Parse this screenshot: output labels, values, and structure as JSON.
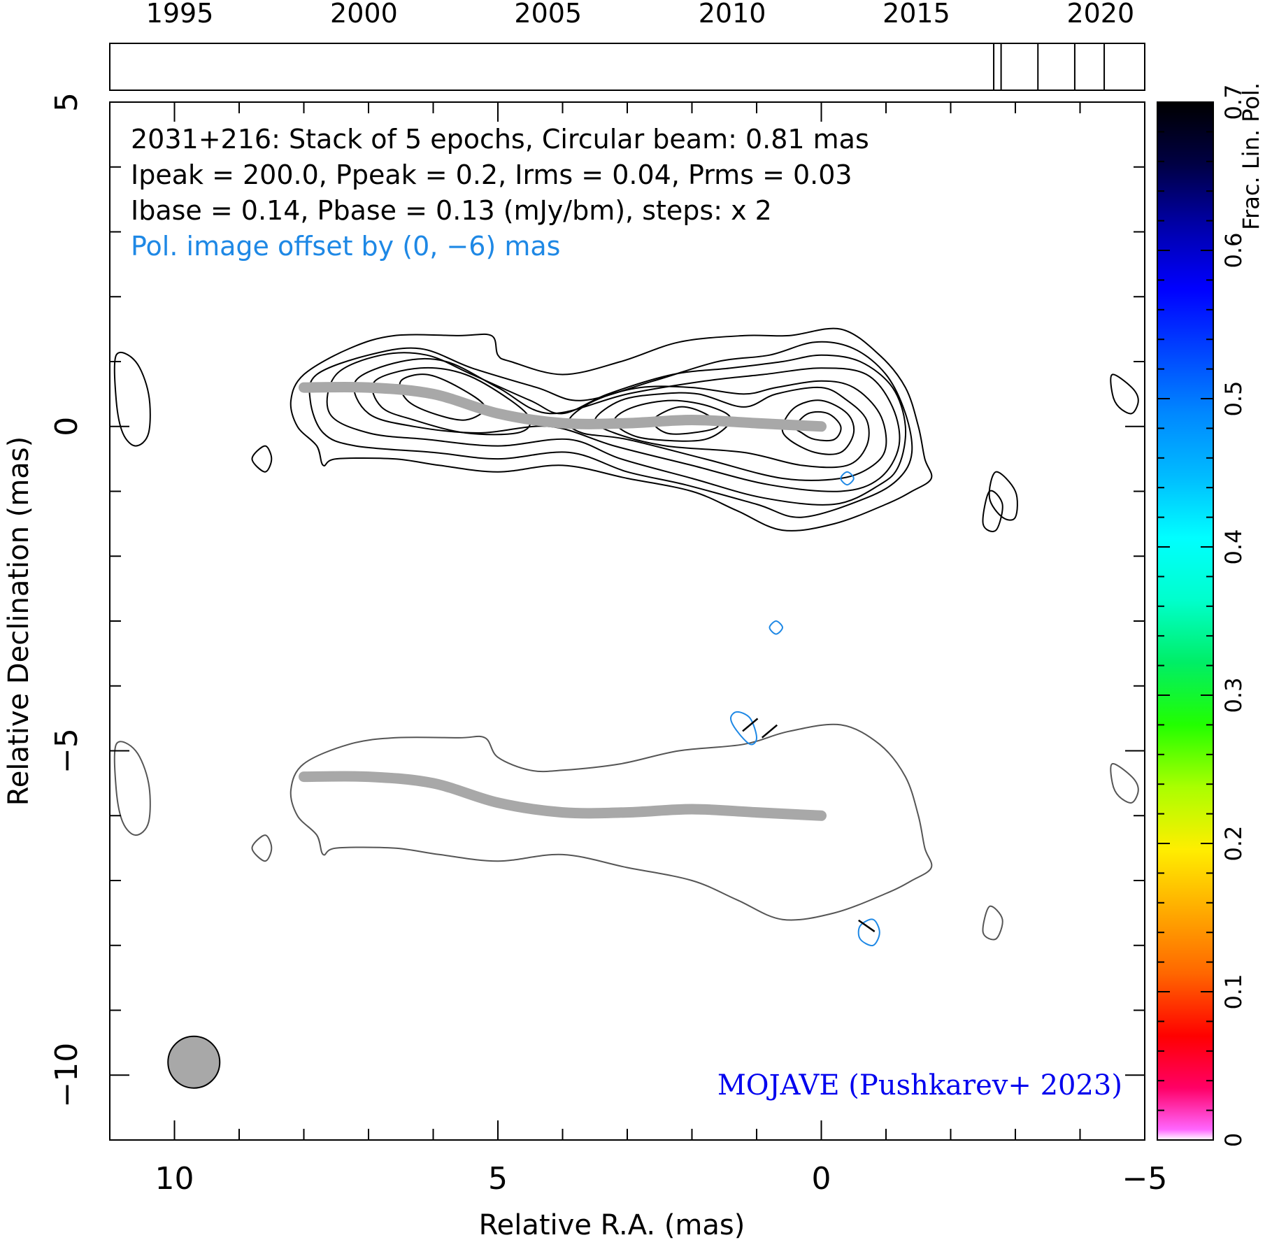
{
  "chart_data": {
    "type": "contour",
    "source_name": "2031+216",
    "annotation_lines": [
      "2031+216: Stack of 5 epochs, Circular beam: 0.81 mas",
      "Ipeak = 200.0, Ppeak = 0.2, Irms = 0.04, Prms = 0.03",
      "Ibase = 0.14, Pbase = 0.13 (mJy/bm), steps: x 2"
    ],
    "offset_note": "Pol. image offset by (0, −6) mas",
    "credit": "MOJAVE (Pushkarev+ 2023)",
    "xlabel": "Relative R.A. (mas)",
    "ylabel": "Relative Declination (mas)",
    "xlim": [
      11,
      -5
    ],
    "ylim": [
      -11,
      5
    ],
    "x_ticks": [
      {
        "value": 10,
        "label": "10"
      },
      {
        "value": 5,
        "label": "5"
      },
      {
        "value": 0,
        "label": "0"
      },
      {
        "value": -5,
        "label": "−5"
      }
    ],
    "y_ticks": [
      {
        "value": 5,
        "label": "5"
      },
      {
        "value": 0,
        "label": "0"
      },
      {
        "value": -5,
        "label": "−5"
      },
      {
        "value": -10,
        "label": "−10"
      }
    ],
    "timeline": {
      "range": [
        1993.1,
        2021.2
      ],
      "ticks": [
        {
          "value": 1995,
          "label": "1995"
        },
        {
          "value": 2000,
          "label": "2000"
        },
        {
          "value": 2005,
          "label": "2005"
        },
        {
          "value": 2010,
          "label": "2010"
        },
        {
          "value": 2015,
          "label": "2015"
        },
        {
          "value": 2020,
          "label": "2020"
        }
      ],
      "epochs": [
        2017.1,
        2017.3,
        2018.3,
        2019.3,
        2020.1
      ]
    },
    "colorbar": {
      "label": "Frac. Lin. Pol.",
      "range": [
        0,
        0.7
      ],
      "ticks": [
        {
          "value": 0,
          "label": "0"
        },
        {
          "value": 0.1,
          "label": "0.1"
        },
        {
          "value": 0.2,
          "label": "0.2"
        },
        {
          "value": 0.3,
          "label": "0.3"
        },
        {
          "value": 0.4,
          "label": "0.4"
        },
        {
          "value": 0.5,
          "label": "0.5"
        },
        {
          "value": 0.6,
          "label": "0.6"
        },
        {
          "value": 0.7,
          "label": "0.7"
        }
      ]
    },
    "beam": {
      "x": 9.7,
      "y": -9.8,
      "diameter_mas": 0.81
    },
    "ridge_line": [
      [
        8.0,
        0.6
      ],
      [
        7.0,
        0.6
      ],
      [
        6.0,
        0.5
      ],
      [
        5.0,
        0.2
      ],
      [
        4.0,
        0.05
      ],
      [
        3.0,
        0.05
      ],
      [
        2.0,
        0.1
      ],
      [
        1.0,
        0.05
      ],
      [
        0.0,
        0.0
      ]
    ],
    "pol_offset": [
      0,
      -6
    ],
    "stokes_i_contours": [
      [
        [
          8.0,
          0.8
        ],
        [
          7.3,
          1.2
        ],
        [
          6.6,
          1.4
        ],
        [
          5.6,
          1.4
        ],
        [
          5.1,
          1.4
        ],
        [
          5.0,
          1.1
        ],
        [
          4.8,
          1.0
        ],
        [
          4.0,
          0.8
        ],
        [
          3.1,
          1.0
        ],
        [
          2.2,
          1.3
        ],
        [
          1.2,
          1.4
        ],
        [
          0.5,
          1.4
        ],
        [
          -0.3,
          1.5
        ],
        [
          -0.9,
          1.1
        ],
        [
          -1.3,
          0.6
        ],
        [
          -1.5,
          0.0
        ],
        [
          -1.6,
          -0.5
        ],
        [
          -1.7,
          -0.8
        ],
        [
          -1.4,
          -1.0
        ],
        [
          -1.0,
          -1.2
        ],
        [
          -0.2,
          -1.5
        ],
        [
          0.6,
          -1.6
        ],
        [
          1.3,
          -1.3
        ],
        [
          2.0,
          -1.0
        ],
        [
          3.0,
          -0.8
        ],
        [
          4.0,
          -0.6
        ],
        [
          5.0,
          -0.7
        ],
        [
          5.9,
          -0.6
        ],
        [
          6.6,
          -0.5
        ],
        [
          7.5,
          -0.5
        ],
        [
          7.7,
          -0.6
        ],
        [
          7.8,
          -0.3
        ],
        [
          8.1,
          0.0
        ],
        [
          8.2,
          0.4
        ]
      ],
      [
        [
          7.8,
          0.8
        ],
        [
          7.0,
          1.1
        ],
        [
          6.2,
          1.2
        ],
        [
          5.4,
          0.9
        ],
        [
          4.4,
          0.6
        ],
        [
          3.7,
          0.4
        ],
        [
          2.6,
          0.7
        ],
        [
          1.6,
          1.0
        ],
        [
          0.8,
          1.1
        ],
        [
          0.1,
          1.3
        ],
        [
          -0.5,
          1.2
        ],
        [
          -1.0,
          0.8
        ],
        [
          -1.3,
          0.2
        ],
        [
          -1.4,
          -0.4
        ],
        [
          -1.2,
          -0.8
        ],
        [
          -0.7,
          -1.1
        ],
        [
          0.3,
          -1.4
        ],
        [
          1.0,
          -1.2
        ],
        [
          2.1,
          -0.9
        ],
        [
          3.0,
          -0.7
        ],
        [
          3.9,
          -0.4
        ],
        [
          5.0,
          -0.5
        ],
        [
          6.0,
          -0.4
        ],
        [
          7.2,
          -0.3
        ],
        [
          7.7,
          -0.1
        ],
        [
          7.9,
          0.4
        ]
      ],
      [
        [
          7.5,
          0.8
        ],
        [
          6.8,
          1.1
        ],
        [
          6.1,
          1.1
        ],
        [
          5.4,
          0.8
        ],
        [
          4.5,
          0.4
        ],
        [
          4.0,
          0.2
        ],
        [
          3.3,
          0.5
        ],
        [
          2.3,
          0.8
        ],
        [
          1.4,
          0.9
        ],
        [
          0.6,
          1.0
        ],
        [
          0.0,
          1.1
        ],
        [
          -0.6,
          1.0
        ],
        [
          -1.1,
          0.6
        ],
        [
          -1.3,
          0.0
        ],
        [
          -1.2,
          -0.6
        ],
        [
          -0.9,
          -0.9
        ],
        [
          -0.2,
          -1.2
        ],
        [
          0.9,
          -1.1
        ],
        [
          2.0,
          -0.8
        ],
        [
          3.1,
          -0.5
        ],
        [
          3.9,
          -0.2
        ],
        [
          5.0,
          -0.3
        ],
        [
          6.1,
          -0.2
        ],
        [
          7.0,
          -0.1
        ],
        [
          7.6,
          0.2
        ]
      ],
      [
        [
          7.2,
          0.7
        ],
        [
          6.5,
          1.0
        ],
        [
          5.8,
          1.0
        ],
        [
          5.0,
          0.6
        ],
        [
          4.2,
          0.2
        ],
        [
          3.0,
          0.5
        ],
        [
          1.8,
          0.7
        ],
        [
          0.9,
          0.8
        ],
        [
          0.0,
          0.9
        ],
        [
          -0.7,
          0.8
        ],
        [
          -1.1,
          0.3
        ],
        [
          -1.2,
          -0.3
        ],
        [
          -0.9,
          -0.8
        ],
        [
          -0.3,
          -1.0
        ],
        [
          0.8,
          -0.9
        ],
        [
          2.0,
          -0.6
        ],
        [
          3.2,
          -0.3
        ],
        [
          4.2,
          0.0
        ],
        [
          5.3,
          -0.1
        ],
        [
          6.3,
          0.0
        ],
        [
          7.0,
          0.2
        ]
      ],
      [
        [
          6.9,
          0.7
        ],
        [
          6.2,
          0.9
        ],
        [
          5.5,
          0.8
        ],
        [
          4.8,
          0.4
        ],
        [
          4.5,
          0.1
        ],
        [
          4.7,
          -0.1
        ],
        [
          5.5,
          -0.1
        ],
        [
          6.3,
          0.1
        ],
        [
          6.8,
          0.3
        ]
      ],
      [
        [
          6.5,
          0.7
        ],
        [
          6.1,
          0.8
        ],
        [
          5.6,
          0.6
        ],
        [
          5.2,
          0.3
        ],
        [
          5.5,
          0.1
        ],
        [
          6.0,
          0.2
        ],
        [
          6.4,
          0.4
        ]
      ],
      [
        [
          3.9,
          0.1
        ],
        [
          3.5,
          0.4
        ],
        [
          2.8,
          0.6
        ],
        [
          2.0,
          0.6
        ],
        [
          1.2,
          0.5
        ],
        [
          0.7,
          0.6
        ],
        [
          0.0,
          0.7
        ],
        [
          -0.5,
          0.6
        ],
        [
          -0.9,
          0.2
        ],
        [
          -1.0,
          -0.3
        ],
        [
          -0.8,
          -0.6
        ],
        [
          -0.3,
          -0.8
        ],
        [
          0.6,
          -0.8
        ],
        [
          1.8,
          -0.5
        ],
        [
          3.0,
          -0.2
        ],
        [
          3.7,
          -0.1
        ]
      ],
      [
        [
          3.5,
          0.1
        ],
        [
          3.1,
          0.4
        ],
        [
          2.5,
          0.5
        ],
        [
          1.9,
          0.5
        ],
        [
          1.2,
          0.3
        ],
        [
          0.7,
          0.5
        ],
        [
          0.0,
          0.6
        ],
        [
          -0.4,
          0.4
        ],
        [
          -0.7,
          0.1
        ],
        [
          -0.7,
          -0.3
        ],
        [
          -0.4,
          -0.6
        ],
        [
          0.3,
          -0.6
        ],
        [
          1.2,
          -0.4
        ],
        [
          2.4,
          -0.3
        ],
        [
          3.2,
          -0.1
        ]
      ],
      [
        [
          3.2,
          0.1
        ],
        [
          2.9,
          0.3
        ],
        [
          2.3,
          0.4
        ],
        [
          1.7,
          0.3
        ],
        [
          1.4,
          0.1
        ],
        [
          1.8,
          -0.2
        ],
        [
          2.6,
          -0.2
        ],
        [
          3.0,
          -0.1
        ]
      ],
      [
        [
          2.6,
          0.1
        ],
        [
          2.2,
          0.3
        ],
        [
          1.8,
          0.2
        ],
        [
          1.6,
          0.0
        ],
        [
          2.0,
          -0.1
        ],
        [
          2.4,
          -0.1
        ]
      ],
      [
        [
          0.6,
          0.0
        ],
        [
          0.4,
          0.3
        ],
        [
          0.0,
          0.4
        ],
        [
          -0.4,
          0.2
        ],
        [
          -0.5,
          -0.1
        ],
        [
          -0.3,
          -0.4
        ],
        [
          0.1,
          -0.4
        ],
        [
          0.5,
          -0.2
        ]
      ],
      [
        [
          0.4,
          0.0
        ],
        [
          0.2,
          0.2
        ],
        [
          -0.1,
          0.2
        ],
        [
          -0.3,
          0.0
        ],
        [
          -0.2,
          -0.2
        ],
        [
          0.1,
          -0.2
        ],
        [
          0.3,
          -0.1
        ]
      ],
      [
        [
          10.9,
          1.1
        ],
        [
          10.6,
          1.0
        ],
        [
          10.4,
          0.5
        ],
        [
          10.4,
          -0.1
        ],
        [
          10.6,
          -0.3
        ],
        [
          10.8,
          -0.1
        ],
        [
          10.9,
          0.4
        ]
      ],
      [
        [
          8.6,
          -0.3
        ],
        [
          8.5,
          -0.5
        ],
        [
          8.6,
          -0.7
        ],
        [
          8.8,
          -0.5
        ]
      ],
      [
        [
          -4.5,
          0.8
        ],
        [
          -4.8,
          0.6
        ],
        [
          -4.9,
          0.4
        ],
        [
          -4.8,
          0.2
        ],
        [
          -4.6,
          0.3
        ],
        [
          -4.5,
          0.5
        ]
      ],
      [
        [
          -2.7,
          -0.7
        ],
        [
          -3.0,
          -1.0
        ],
        [
          -3.0,
          -1.4
        ],
        [
          -2.8,
          -1.4
        ],
        [
          -2.6,
          -1.1
        ]
      ],
      [
        [
          -2.6,
          -1.0
        ],
        [
          -2.8,
          -1.2
        ],
        [
          -2.7,
          -1.6
        ],
        [
          -2.5,
          -1.5
        ]
      ]
    ],
    "polarization_contours": [
      [
        [
          1.3,
          -4.4
        ],
        [
          1.1,
          -4.5
        ],
        [
          1.0,
          -4.8
        ],
        [
          1.1,
          -4.9
        ],
        [
          1.3,
          -4.7
        ],
        [
          1.4,
          -4.5
        ]
      ],
      [
        [
          -0.8,
          -7.6
        ],
        [
          -0.9,
          -7.8
        ],
        [
          -0.8,
          -8.0
        ],
        [
          -0.6,
          -7.9
        ],
        [
          -0.6,
          -7.7
        ]
      ],
      [
        [
          0.7,
          -3.0
        ],
        [
          0.6,
          -3.1
        ],
        [
          0.7,
          -3.2
        ],
        [
          0.8,
          -3.1
        ]
      ],
      [
        [
          -0.4,
          -0.7
        ],
        [
          -0.5,
          -0.8
        ],
        [
          -0.4,
          -0.9
        ],
        [
          -0.3,
          -0.8
        ]
      ]
    ],
    "polarization_total_contour": [
      [
        [
          8.0,
          -5.2
        ],
        [
          7.3,
          -4.9
        ],
        [
          6.6,
          -4.8
        ],
        [
          5.6,
          -4.8
        ],
        [
          5.2,
          -4.8
        ],
        [
          5.0,
          -5.1
        ],
        [
          4.5,
          -5.3
        ],
        [
          4.0,
          -5.3
        ],
        [
          3.1,
          -5.2
        ],
        [
          2.2,
          -5.0
        ],
        [
          1.2,
          -4.9
        ],
        [
          0.5,
          -4.7
        ],
        [
          -0.3,
          -4.6
        ],
        [
          -0.9,
          -4.9
        ],
        [
          -1.3,
          -5.4
        ],
        [
          -1.5,
          -6.0
        ],
        [
          -1.6,
          -6.5
        ],
        [
          -1.7,
          -6.8
        ],
        [
          -1.4,
          -7.0
        ],
        [
          -1.0,
          -7.2
        ],
        [
          -0.2,
          -7.5
        ],
        [
          0.6,
          -7.6
        ],
        [
          1.3,
          -7.3
        ],
        [
          2.0,
          -7.0
        ],
        [
          3.0,
          -6.8
        ],
        [
          4.0,
          -6.6
        ],
        [
          5.0,
          -6.7
        ],
        [
          5.9,
          -6.6
        ],
        [
          6.6,
          -6.5
        ],
        [
          7.5,
          -6.5
        ],
        [
          7.7,
          -6.6
        ],
        [
          7.8,
          -6.3
        ],
        [
          8.1,
          -6.0
        ],
        [
          8.2,
          -5.6
        ]
      ],
      [
        [
          10.9,
          -4.9
        ],
        [
          10.6,
          -5.0
        ],
        [
          10.4,
          -5.5
        ],
        [
          10.4,
          -6.1
        ],
        [
          10.6,
          -6.3
        ],
        [
          10.8,
          -6.1
        ],
        [
          10.9,
          -5.6
        ]
      ],
      [
        [
          8.6,
          -6.3
        ],
        [
          8.5,
          -6.5
        ],
        [
          8.6,
          -6.7
        ],
        [
          8.8,
          -6.5
        ]
      ],
      [
        [
          -4.5,
          -5.2
        ],
        [
          -4.8,
          -5.4
        ],
        [
          -4.9,
          -5.6
        ],
        [
          -4.8,
          -5.8
        ],
        [
          -4.6,
          -5.7
        ],
        [
          -4.5,
          -5.5
        ]
      ],
      [
        [
          -2.6,
          -7.4
        ],
        [
          -2.8,
          -7.6
        ],
        [
          -2.7,
          -7.9
        ],
        [
          -2.5,
          -7.8
        ]
      ]
    ],
    "evpa_ticks": [
      [
        1.1,
        -4.6,
        -40
      ],
      [
        0.8,
        -4.7,
        -40
      ],
      [
        -0.7,
        -7.7,
        35
      ]
    ]
  }
}
